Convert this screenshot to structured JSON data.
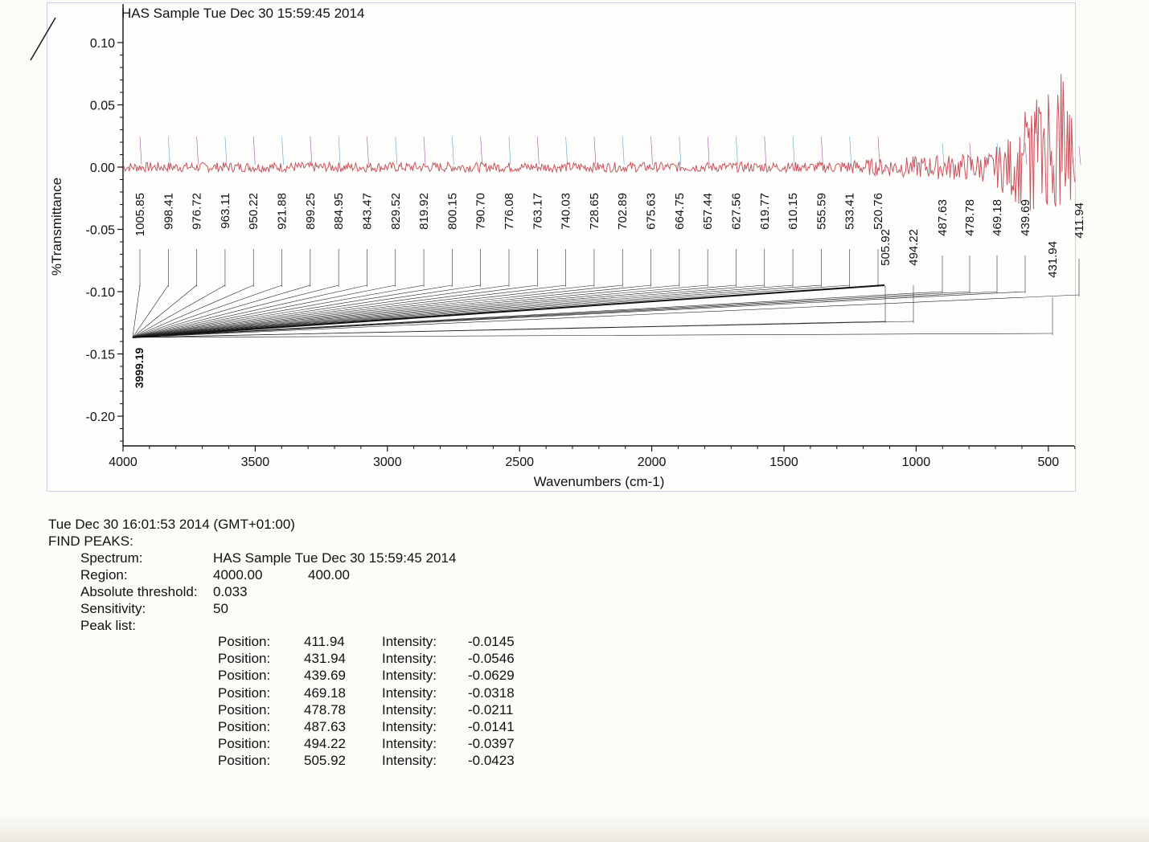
{
  "chart_data": {
    "type": "line",
    "title": "HAS Sample Tue Dec 30 15:59:45 2014",
    "xlabel": "Wavenumbers (cm-1)",
    "ylabel": "%Transmittance",
    "xlim": [
      4000,
      400
    ],
    "ylim": [
      -0.225,
      0.125
    ],
    "x_reversed": true,
    "x_ticks": [
      "4000",
      "3500",
      "3000",
      "2500",
      "2000",
      "1500",
      "1000",
      "500"
    ],
    "x_tick_values": [
      4000,
      3500,
      3000,
      2500,
      2000,
      1500,
      1000,
      500
    ],
    "y_ticks": [
      "0.10",
      "0.05",
      "0.00",
      "-0.05",
      "-0.10",
      "-0.15",
      "-0.20"
    ],
    "y_tick_values": [
      0.1,
      0.05,
      0.0,
      -0.05,
      -0.1,
      -0.15,
      -0.2
    ],
    "grid": false,
    "line_color": "#c8545e",
    "spectrum_baseline": 0.0,
    "peak_labels": [
      "1005.85",
      "998.41",
      "976.72",
      "963.11",
      "950.22",
      "921.88",
      "899.25",
      "884.95",
      "843.47",
      "829.52",
      "819.92",
      "800.15",
      "790.70",
      "776.08",
      "763.17",
      "740.03",
      "728.65",
      "702.89",
      "675.63",
      "664.75",
      "657.44",
      "627.56",
      "619.77",
      "610.15",
      "555.59",
      "533.41",
      "520.76",
      "505.92",
      "494.22",
      "487.63",
      "478.78",
      "469.18",
      "439.69",
      "431.94",
      "411.94"
    ],
    "peaks": [
      {
        "position": 411.94,
        "intensity": -0.0145
      },
      {
        "position": 431.94,
        "intensity": -0.0546
      },
      {
        "position": 439.69,
        "intensity": -0.0629
      },
      {
        "position": 469.18,
        "intensity": -0.0318
      },
      {
        "position": 478.78,
        "intensity": -0.0211
      },
      {
        "position": 487.63,
        "intensity": -0.0141
      },
      {
        "position": 494.22,
        "intensity": -0.0397
      },
      {
        "position": 505.92,
        "intensity": -0.0423
      }
    ],
    "overlapping_labels_text": "3999.19"
  },
  "report": {
    "timestamp": "Tue Dec 30 16:01:53 2014 (GMT+01:00)",
    "heading": "FIND PEAKS:",
    "spectrum_label": "Spectrum:",
    "spectrum_value": "HAS Sample Tue Dec 30 15:59:45 2014",
    "region_label": "Region:",
    "region_start": "4000.00",
    "region_end": "400.00",
    "threshold_label": "Absolute threshold:",
    "threshold_value": "0.033",
    "sensitivity_label": "Sensitivity:",
    "sensitivity_value": "50",
    "peaklist_label": "Peak list:",
    "position_label": "Position:",
    "intensity_label": "Intensity:",
    "rows": [
      {
        "position": "411.94",
        "intensity": "-0.0145"
      },
      {
        "position": "431.94",
        "intensity": "-0.0546"
      },
      {
        "position": "439.69",
        "intensity": "-0.0629"
      },
      {
        "position": "469.18",
        "intensity": "-0.0318"
      },
      {
        "position": "478.78",
        "intensity": "-0.0211"
      },
      {
        "position": "487.63",
        "intensity": "-0.0141"
      },
      {
        "position": "494.22",
        "intensity": "-0.0397"
      },
      {
        "position": "505.92",
        "intensity": "-0.0423"
      }
    ]
  }
}
